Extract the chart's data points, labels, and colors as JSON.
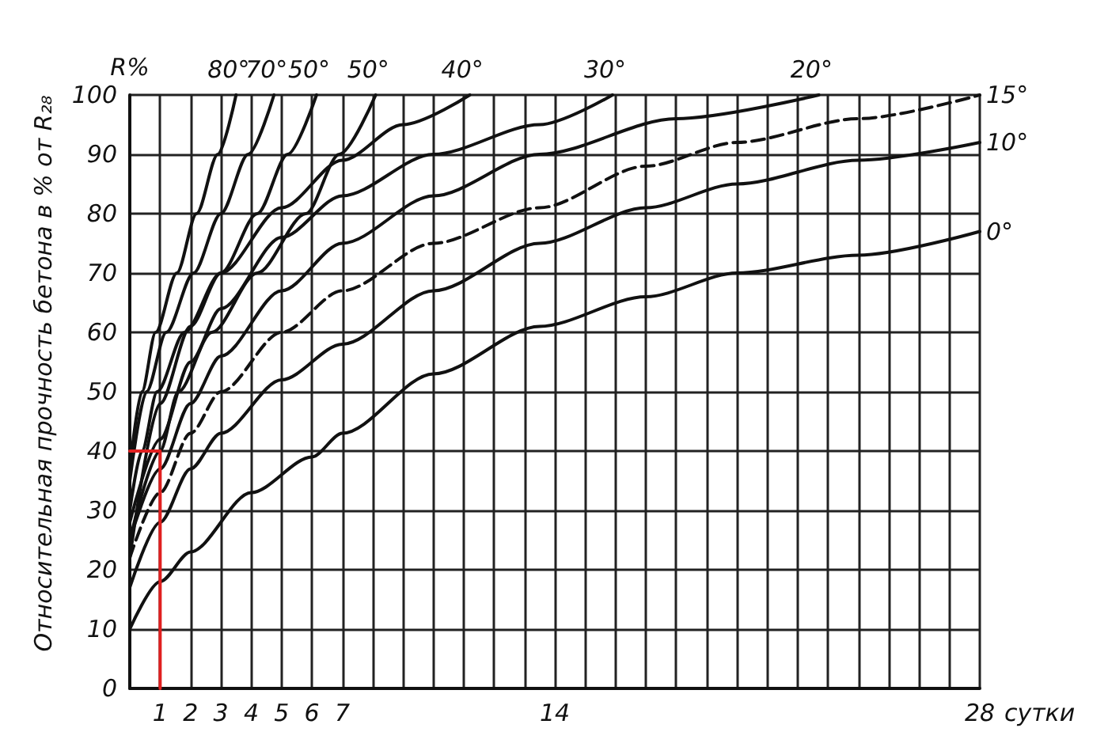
{
  "chart_data": {
    "type": "line",
    "ylabel": "Относительная прочность бетона в % от R₂₈",
    "xlabel": "сутки",
    "annotations": [
      "R%"
    ],
    "xlim": [
      0,
      28
    ],
    "ylim": [
      0,
      100
    ],
    "xticks": [
      {
        "value": 0,
        "label": null
      },
      1,
      2,
      3,
      4,
      5,
      6,
      7,
      {
        "value": 8,
        "label": null
      },
      {
        "value": 9,
        "label": null
      },
      {
        "value": 10,
        "label": null
      },
      {
        "value": 11,
        "label": null
      },
      {
        "value": 12,
        "label": null
      },
      {
        "value": 13,
        "label": null
      },
      14,
      {
        "value": 15,
        "label": null
      },
      {
        "value": 16,
        "label": null
      },
      {
        "value": 17,
        "label": null
      },
      {
        "value": 18,
        "label": null
      },
      {
        "value": 19,
        "label": null
      },
      {
        "value": 20,
        "label": null
      },
      {
        "value": 21,
        "label": null
      },
      {
        "value": 22,
        "label": null
      },
      {
        "value": 23,
        "label": null
      },
      {
        "value": 24,
        "label": null
      },
      {
        "value": 25,
        "label": null
      },
      {
        "value": 26,
        "label": null
      },
      {
        "value": 27,
        "label": null
      },
      28
    ],
    "yticks": [
      0,
      10,
      20,
      30,
      40,
      50,
      60,
      70,
      80,
      90,
      100
    ],
    "grid": true,
    "marker": "none",
    "series": [
      {
        "name": "80°",
        "color": "#111111",
        "x": [
          0,
          0.4,
          0.85,
          1.55,
          2.2,
          2.9,
          3.5
        ],
        "values": [
          37,
          50,
          60,
          70,
          80,
          90,
          100
        ]
      },
      {
        "name": "70°",
        "color": "#111111",
        "x": [
          0,
          0.55,
          1.2,
          2.1,
          3,
          3.9,
          4.75
        ],
        "values": [
          35,
          50,
          60,
          70,
          80,
          90,
          100
        ]
      },
      {
        "name": "50°",
        "color": "#111111",
        "x": [
          0,
          0.4,
          0.9,
          1.8,
          3,
          4.2,
          5.2,
          6.15
        ],
        "values": [
          30,
          40,
          50,
          60,
          70,
          80,
          90,
          100
        ]
      },
      {
        "name": "50°",
        "color": "#111111",
        "x": [
          0,
          1,
          1.6,
          2.7,
          4.2,
          5.8,
          6.9,
          8.1
        ],
        "values": [
          25,
          40,
          50,
          60,
          70,
          80,
          90,
          100
        ]
      },
      {
        "name": "40°",
        "color": "#111111",
        "x": [
          0,
          1,
          2,
          3,
          5,
          7,
          9,
          11.2
        ],
        "values": [
          22,
          48,
          61,
          70,
          81,
          89,
          95,
          100
        ]
      },
      {
        "name": "30°",
        "color": "#111111",
        "x": [
          0,
          1,
          2,
          3,
          5,
          7,
          10,
          13.5,
          15.9
        ],
        "values": [
          28,
          42,
          55,
          64,
          76,
          83,
          90,
          95,
          100
        ]
      },
      {
        "name": "20°",
        "color": "#111111",
        "x": [
          0,
          1,
          2,
          3,
          5,
          7,
          10,
          13.5,
          18,
          22.7
        ],
        "values": [
          25,
          37,
          48,
          56,
          67,
          75,
          83,
          90,
          96,
          100
        ]
      },
      {
        "name": "15°",
        "color": "#111111",
        "line_style": "dashed",
        "x": [
          0,
          1,
          2,
          3,
          5,
          7,
          10,
          13.5,
          17,
          20,
          24,
          28
        ],
        "values": [
          22,
          33,
          43,
          50,
          60,
          67,
          75,
          81,
          88,
          92,
          96,
          100
        ]
      },
      {
        "name": "10°",
        "color": "#111111",
        "x": [
          0,
          1,
          2,
          3,
          5,
          7,
          10,
          13.5,
          17,
          20,
          24,
          28
        ],
        "values": [
          17,
          28,
          37,
          43,
          52,
          58,
          67,
          75,
          81,
          85,
          89,
          92
        ]
      },
      {
        "name": "0°",
        "color": "#111111",
        "x": [
          0,
          1,
          2,
          4,
          6,
          7,
          10,
          13.5,
          17,
          20,
          24,
          28
        ],
        "values": [
          10,
          18,
          23,
          33,
          39,
          43,
          53,
          61,
          66,
          70,
          73,
          77
        ]
      },
      {
        "color": "#e02020",
        "x": [
          0,
          1,
          1
        ],
        "values": [
          40,
          40,
          0
        ]
      }
    ]
  }
}
